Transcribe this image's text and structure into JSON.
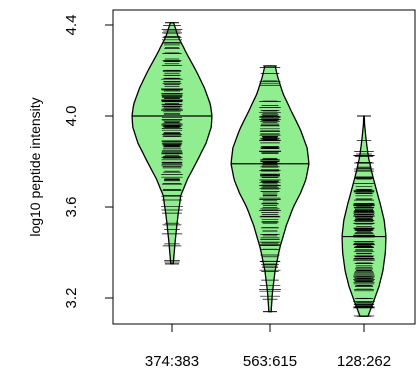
{
  "chart_data": {
    "type": "beanplot",
    "title": "",
    "xlabel": "",
    "ylabel": "log10 peptide intensity",
    "ylim": [
      3.1,
      4.45
    ],
    "yticks": [
      3.2,
      3.6,
      4.0,
      4.4
    ],
    "ytick_labels": [
      "3.2",
      "3.6",
      "4.0",
      "4.4"
    ],
    "fill_color": "#90EE90",
    "line_color": "#000000",
    "beans": [
      {
        "label": "374:383",
        "median": 4.0,
        "min": 3.35,
        "max": 4.41,
        "density_y": [
          3.35,
          3.45,
          3.55,
          3.65,
          3.72,
          3.8,
          3.88,
          3.95,
          4.0,
          4.05,
          4.12,
          4.2,
          4.28,
          4.35,
          4.41
        ],
        "density_w": [
          0.03,
          0.08,
          0.14,
          0.22,
          0.38,
          0.62,
          0.85,
          0.98,
          1.0,
          0.96,
          0.82,
          0.6,
          0.35,
          0.15,
          0.04
        ]
      },
      {
        "label": "563:615",
        "median": 3.79,
        "min": 3.14,
        "max": 4.22,
        "density_y": [
          3.14,
          3.22,
          3.32,
          3.42,
          3.52,
          3.6,
          3.66,
          3.72,
          3.79,
          3.86,
          3.94,
          4.02,
          4.1,
          4.17,
          4.22
        ],
        "density_w": [
          0.03,
          0.06,
          0.13,
          0.25,
          0.42,
          0.6,
          0.78,
          0.92,
          1.0,
          0.95,
          0.78,
          0.55,
          0.33,
          0.2,
          0.13
        ]
      },
      {
        "label": "128:262",
        "median": 3.47,
        "min": 3.12,
        "max": 4.0,
        "density_y": [
          3.12,
          3.18,
          3.25,
          3.32,
          3.4,
          3.47,
          3.54,
          3.61,
          3.68,
          3.75,
          3.82,
          3.9,
          3.96,
          4.0
        ],
        "density_w": [
          0.18,
          0.42,
          0.68,
          0.86,
          0.97,
          1.0,
          0.92,
          0.75,
          0.55,
          0.36,
          0.2,
          0.09,
          0.03,
          0.01
        ]
      }
    ]
  }
}
